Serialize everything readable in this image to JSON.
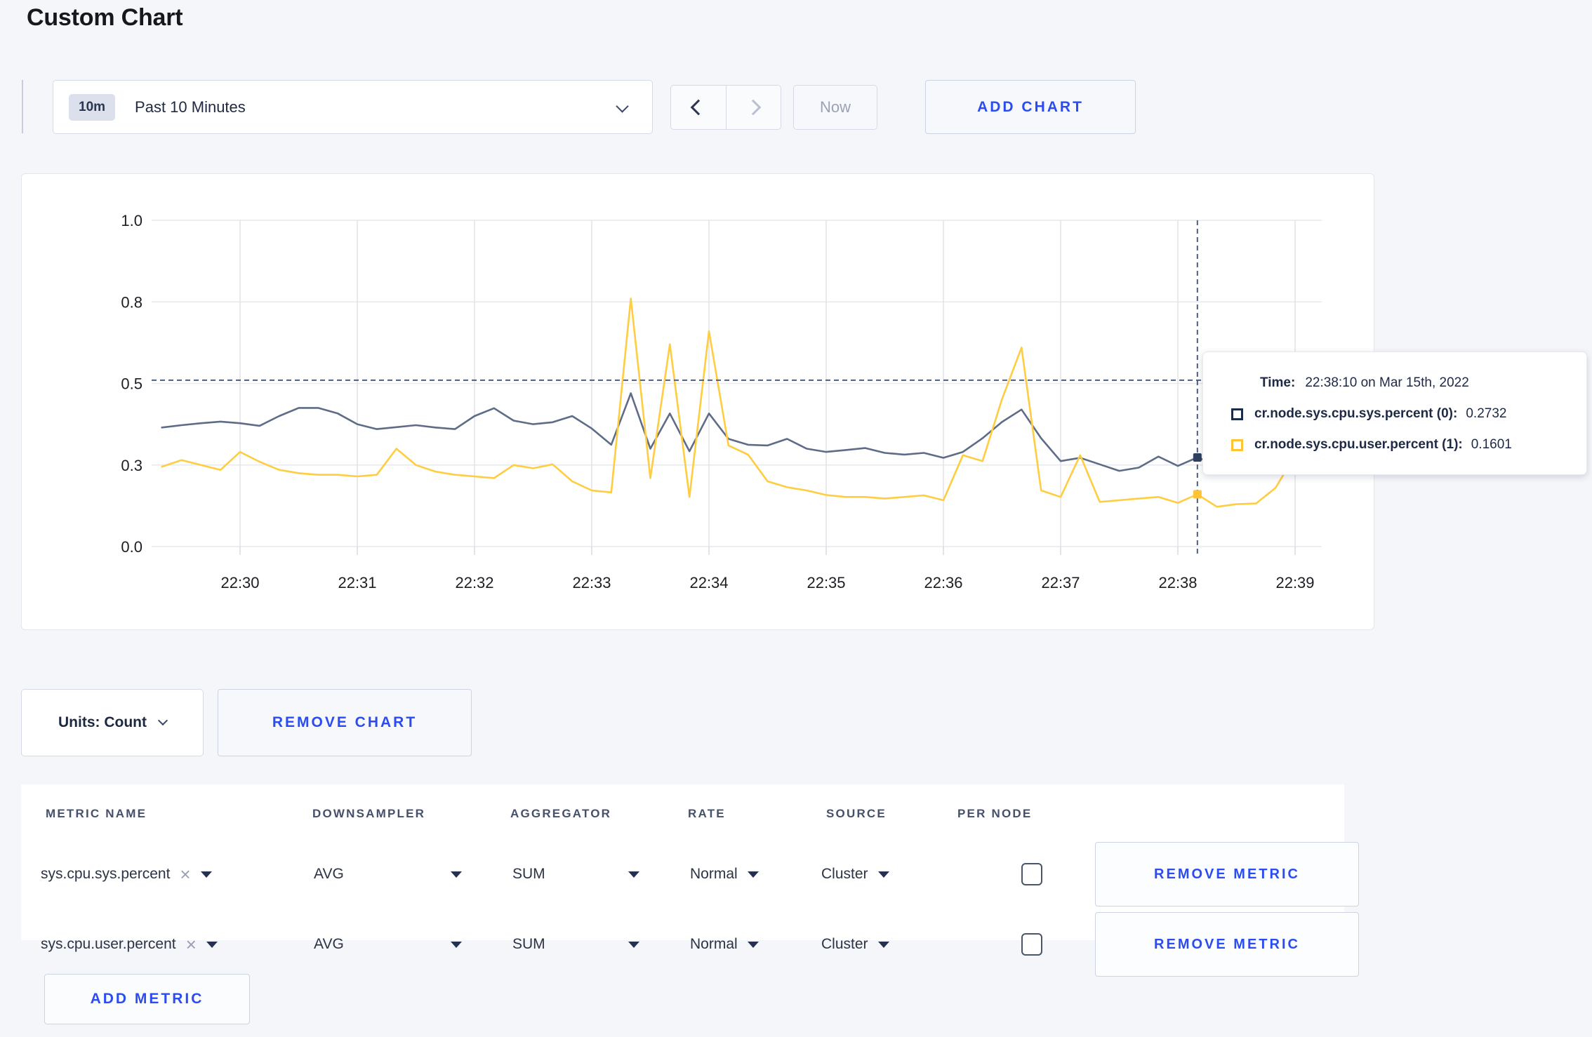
{
  "page": {
    "title": "Custom Chart"
  },
  "toolbar": {
    "time_badge": "10m",
    "time_label": "Past 10 Minutes",
    "now_label": "Now",
    "add_chart_label": "ADD CHART"
  },
  "chart_data": {
    "type": "line",
    "title": "",
    "xlabel": "",
    "ylabel": "",
    "x_axis": {
      "tick_labels": [
        "22:30",
        "22:31",
        "22:32",
        "22:33",
        "22:34",
        "22:35",
        "22:36",
        "22:37",
        "22:38",
        "22:39"
      ],
      "start_time": "22:29:20",
      "interval_seconds": 10
    },
    "y_axis": {
      "tick_labels": [
        "1.0",
        "0.8",
        "0.5",
        "0.3",
        "0.0"
      ],
      "tick_values": [
        1.0,
        0.75,
        0.5,
        0.25,
        0.0
      ],
      "range": [
        0,
        1
      ],
      "grid": true
    },
    "legend_position": "tooltip",
    "series": [
      {
        "name": "cr.node.sys.cpu.sys.percent",
        "color": "#5f6c87",
        "values": [
          0.365,
          0.372,
          0.378,
          0.383,
          0.378,
          0.37,
          0.4,
          0.425,
          0.425,
          0.408,
          0.375,
          0.36,
          0.366,
          0.372,
          0.365,
          0.36,
          0.4,
          0.424,
          0.386,
          0.375,
          0.381,
          0.4,
          0.362,
          0.312,
          0.47,
          0.3,
          0.408,
          0.292,
          0.408,
          0.33,
          0.312,
          0.31,
          0.33,
          0.3,
          0.29,
          0.296,
          0.302,
          0.287,
          0.282,
          0.287,
          0.272,
          0.29,
          0.332,
          0.382,
          0.42,
          0.332,
          0.262,
          0.272,
          0.252,
          0.232,
          0.242,
          0.276,
          0.247,
          0.2732,
          0.252,
          0.262,
          0.272,
          0.282,
          0.3,
          0.31
        ]
      },
      {
        "name": "cr.node.sys.cpu.user.percent",
        "color": "#ffcd40",
        "values": [
          0.245,
          0.265,
          0.25,
          0.235,
          0.29,
          0.26,
          0.235,
          0.225,
          0.22,
          0.22,
          0.215,
          0.22,
          0.3,
          0.25,
          0.23,
          0.22,
          0.215,
          0.21,
          0.25,
          0.24,
          0.252,
          0.2,
          0.172,
          0.166,
          0.76,
          0.21,
          0.62,
          0.152,
          0.66,
          0.31,
          0.282,
          0.2,
          0.182,
          0.172,
          0.158,
          0.152,
          0.152,
          0.147,
          0.152,
          0.157,
          0.142,
          0.28,
          0.262,
          0.452,
          0.61,
          0.172,
          0.152,
          0.28,
          0.137,
          0.142,
          0.147,
          0.152,
          0.134,
          0.1601,
          0.122,
          0.13,
          0.132,
          0.18,
          0.28,
          0.24
        ]
      }
    ],
    "crosshair": {
      "time": "22:38:10",
      "minutes_from_2230": 8.1667,
      "h_value": 0.51,
      "point_index": 53
    }
  },
  "tooltip": {
    "time_label": "Time:",
    "time_value": "22:38:10 on Mar 15th, 2022",
    "rows": [
      {
        "label": "cr.node.sys.cpu.sys.percent (0):",
        "value": "0.2732",
        "color": "#1b2b4a"
      },
      {
        "label": "cr.node.sys.cpu.user.percent (1):",
        "value": "0.1601",
        "color": "#ffc334"
      }
    ]
  },
  "chart_footer": {
    "units_label": "Units: Count",
    "remove_chart_label": "REMOVE CHART"
  },
  "metrics_table": {
    "headers": [
      "METRIC NAME",
      "DOWNSAMPLER",
      "AGGREGATOR",
      "RATE",
      "SOURCE",
      "PER NODE"
    ],
    "rows": [
      {
        "metric_name": "sys.cpu.sys.percent",
        "downsampler": "AVG",
        "aggregator": "SUM",
        "rate": "Normal",
        "source": "Cluster",
        "per_node_checked": false,
        "remove_label": "REMOVE METRIC"
      },
      {
        "metric_name": "sys.cpu.user.percent",
        "downsampler": "AVG",
        "aggregator": "SUM",
        "rate": "Normal",
        "source": "Cluster",
        "per_node_checked": false,
        "remove_label": "REMOVE METRIC"
      }
    ],
    "add_metric_label": "ADD METRIC"
  },
  "colors": {
    "accent_blue": "#2b4cf2",
    "series_sys": "#5f6c87",
    "series_user": "#ffcd40",
    "crosshair": "#4f5f7d",
    "grid": "#e8e9ed"
  }
}
